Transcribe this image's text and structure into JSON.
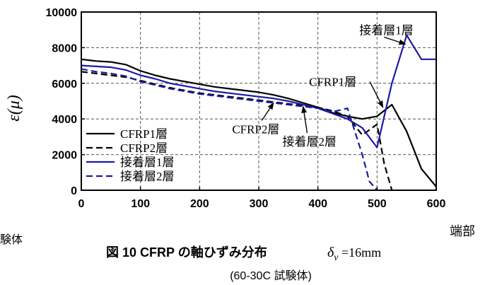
{
  "chart_data": {
    "type": "line",
    "xlim": [
      0,
      600
    ],
    "ylim": [
      0,
      10000
    ],
    "x_ticks": [
      "0",
      "100",
      "200",
      "300",
      "400",
      "500",
      "600"
    ],
    "y_ticks": [
      "0",
      "2000",
      "4000",
      "6000",
      "8000",
      "10000"
    ],
    "ylabel": "ε(μ)",
    "x_end_label": "端部",
    "grid": true,
    "legend_position": "bottom-left",
    "series": [
      {
        "name": "CFRP1層",
        "color": "#000000",
        "dash": "solid",
        "points": [
          [
            0,
            7350
          ],
          [
            25,
            7250
          ],
          [
            50,
            7200
          ],
          [
            75,
            7050
          ],
          [
            100,
            6700
          ],
          [
            125,
            6450
          ],
          [
            150,
            6250
          ],
          [
            175,
            6100
          ],
          [
            200,
            5950
          ],
          [
            225,
            5800
          ],
          [
            250,
            5700
          ],
          [
            275,
            5600
          ],
          [
            300,
            5500
          ],
          [
            325,
            5350
          ],
          [
            350,
            5150
          ],
          [
            375,
            4900
          ],
          [
            400,
            4650
          ],
          [
            425,
            4350
          ],
          [
            450,
            4150
          ],
          [
            475,
            4000
          ],
          [
            500,
            4150
          ],
          [
            525,
            4800
          ],
          [
            550,
            3300
          ],
          [
            575,
            1200
          ],
          [
            600,
            200
          ]
        ]
      },
      {
        "name": "CFRP2層",
        "color": "#000000",
        "dash": "dashed",
        "points": [
          [
            0,
            6650
          ],
          [
            25,
            6550
          ],
          [
            50,
            6450
          ],
          [
            75,
            6350
          ],
          [
            100,
            6150
          ],
          [
            125,
            5950
          ],
          [
            150,
            5750
          ],
          [
            175,
            5600
          ],
          [
            200,
            5450
          ],
          [
            225,
            5350
          ],
          [
            250,
            5250
          ],
          [
            275,
            5150
          ],
          [
            300,
            5050
          ],
          [
            325,
            4950
          ],
          [
            350,
            4850
          ],
          [
            375,
            4750
          ],
          [
            400,
            4650
          ],
          [
            425,
            4450
          ],
          [
            450,
            4150
          ],
          [
            475,
            3100
          ],
          [
            500,
            3700
          ],
          [
            512,
            1500
          ],
          [
            525,
            0
          ]
        ]
      },
      {
        "name": "接着層1層",
        "color": "#1a1aa8",
        "dash": "solid",
        "points": [
          [
            0,
            7000
          ],
          [
            25,
            6950
          ],
          [
            50,
            6900
          ],
          [
            75,
            6750
          ],
          [
            100,
            6450
          ],
          [
            125,
            6250
          ],
          [
            150,
            6000
          ],
          [
            175,
            5850
          ],
          [
            200,
            5700
          ],
          [
            225,
            5550
          ],
          [
            250,
            5450
          ],
          [
            275,
            5350
          ],
          [
            300,
            5250
          ],
          [
            325,
            5150
          ],
          [
            350,
            5000
          ],
          [
            375,
            4800
          ],
          [
            400,
            4600
          ],
          [
            425,
            4300
          ],
          [
            450,
            4000
          ],
          [
            475,
            3500
          ],
          [
            500,
            2400
          ],
          [
            525,
            6000
          ],
          [
            550,
            8700
          ],
          [
            575,
            7350
          ],
          [
            600,
            7350
          ]
        ]
      },
      {
        "name": "接着層2層",
        "color": "#1a1aa8",
        "dash": "dashed",
        "points": [
          [
            0,
            6800
          ],
          [
            25,
            6650
          ],
          [
            50,
            6550
          ],
          [
            75,
            6400
          ],
          [
            100,
            6100
          ],
          [
            125,
            5900
          ],
          [
            150,
            5700
          ],
          [
            175,
            5550
          ],
          [
            200,
            5400
          ],
          [
            225,
            5300
          ],
          [
            250,
            5200
          ],
          [
            275,
            5100
          ],
          [
            300,
            5000
          ],
          [
            325,
            4900
          ],
          [
            350,
            4800
          ],
          [
            375,
            4700
          ],
          [
            400,
            4600
          ],
          [
            425,
            4400
          ],
          [
            450,
            4600
          ],
          [
            475,
            2000
          ],
          [
            487,
            500
          ],
          [
            500,
            0
          ]
        ]
      }
    ],
    "annotations": [
      {
        "text": "接着層1層",
        "at": [
          470,
          8750
        ],
        "arrow_to": [
          548,
          8200
        ]
      },
      {
        "text": "CFRP1層",
        "at": [
          385,
          5850
        ],
        "arrow_to": [
          510,
          4650
        ]
      },
      {
        "text": "CFRP2層",
        "at": [
          255,
          3200
        ],
        "arrow_to": [
          325,
          4900
        ]
      },
      {
        "text": "接着層2層",
        "at": [
          340,
          2500
        ],
        "arrow_to": [
          375,
          4700
        ]
      }
    ]
  },
  "caption": {
    "figure": "図 10 CFRP の軸ひずみ分布",
    "delta_symbol": "δ",
    "delta_sub": "v",
    "delta_value": " =16mm",
    "subtitle": "(60-30C 試験体)",
    "left_fragment": "験体"
  }
}
